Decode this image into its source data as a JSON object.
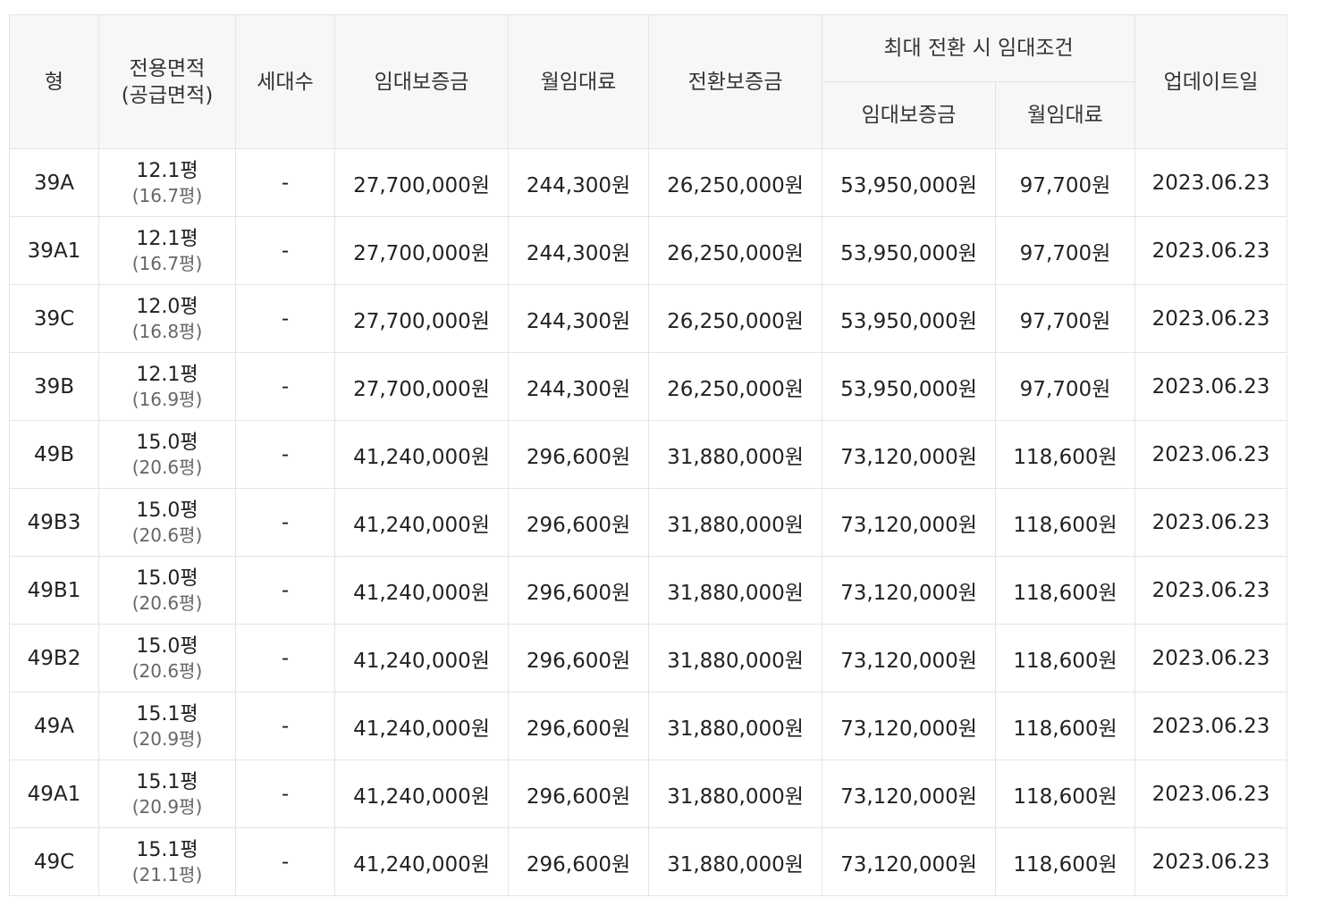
{
  "table": {
    "headers": {
      "type": "형",
      "area_line1": "전용면적",
      "area_line2": "(공급면적)",
      "households": "세대수",
      "deposit": "임대보증금",
      "monthly_rent": "월임대료",
      "conversion_deposit": "전환보증금",
      "max_conversion_group": "최대 전환 시 임대조건",
      "max_deposit": "임대보증금",
      "max_monthly_rent": "월임대료",
      "updated": "업데이트일"
    },
    "rows": [
      {
        "type": "39A",
        "area": "12.1평",
        "supply_area": "(16.7평)",
        "households": "-",
        "deposit": "27,700,000원",
        "monthly_rent": "244,300원",
        "conversion_deposit": "26,250,000원",
        "max_deposit": "53,950,000원",
        "max_monthly_rent": "97,700원",
        "updated": "2023.06.23"
      },
      {
        "type": "39A1",
        "area": "12.1평",
        "supply_area": "(16.7평)",
        "households": "-",
        "deposit": "27,700,000원",
        "monthly_rent": "244,300원",
        "conversion_deposit": "26,250,000원",
        "max_deposit": "53,950,000원",
        "max_monthly_rent": "97,700원",
        "updated": "2023.06.23"
      },
      {
        "type": "39C",
        "area": "12.0평",
        "supply_area": "(16.8평)",
        "households": "-",
        "deposit": "27,700,000원",
        "monthly_rent": "244,300원",
        "conversion_deposit": "26,250,000원",
        "max_deposit": "53,950,000원",
        "max_monthly_rent": "97,700원",
        "updated": "2023.06.23"
      },
      {
        "type": "39B",
        "area": "12.1평",
        "supply_area": "(16.9평)",
        "households": "-",
        "deposit": "27,700,000원",
        "monthly_rent": "244,300원",
        "conversion_deposit": "26,250,000원",
        "max_deposit": "53,950,000원",
        "max_monthly_rent": "97,700원",
        "updated": "2023.06.23"
      },
      {
        "type": "49B",
        "area": "15.0평",
        "supply_area": "(20.6평)",
        "households": "-",
        "deposit": "41,240,000원",
        "monthly_rent": "296,600원",
        "conversion_deposit": "31,880,000원",
        "max_deposit": "73,120,000원",
        "max_monthly_rent": "118,600원",
        "updated": "2023.06.23"
      },
      {
        "type": "49B3",
        "area": "15.0평",
        "supply_area": "(20.6평)",
        "households": "-",
        "deposit": "41,240,000원",
        "monthly_rent": "296,600원",
        "conversion_deposit": "31,880,000원",
        "max_deposit": "73,120,000원",
        "max_monthly_rent": "118,600원",
        "updated": "2023.06.23"
      },
      {
        "type": "49B1",
        "area": "15.0평",
        "supply_area": "(20.6평)",
        "households": "-",
        "deposit": "41,240,000원",
        "monthly_rent": "296,600원",
        "conversion_deposit": "31,880,000원",
        "max_deposit": "73,120,000원",
        "max_monthly_rent": "118,600원",
        "updated": "2023.06.23"
      },
      {
        "type": "49B2",
        "area": "15.0평",
        "supply_area": "(20.6평)",
        "households": "-",
        "deposit": "41,240,000원",
        "monthly_rent": "296,600원",
        "conversion_deposit": "31,880,000원",
        "max_deposit": "73,120,000원",
        "max_monthly_rent": "118,600원",
        "updated": "2023.06.23"
      },
      {
        "type": "49A",
        "area": "15.1평",
        "supply_area": "(20.9평)",
        "households": "-",
        "deposit": "41,240,000원",
        "monthly_rent": "296,600원",
        "conversion_deposit": "31,880,000원",
        "max_deposit": "73,120,000원",
        "max_monthly_rent": "118,600원",
        "updated": "2023.06.23"
      },
      {
        "type": "49A1",
        "area": "15.1평",
        "supply_area": "(20.9평)",
        "households": "-",
        "deposit": "41,240,000원",
        "monthly_rent": "296,600원",
        "conversion_deposit": "31,880,000원",
        "max_deposit": "73,120,000원",
        "max_monthly_rent": "118,600원",
        "updated": "2023.06.23"
      },
      {
        "type": "49C",
        "area": "15.1평",
        "supply_area": "(21.1평)",
        "households": "-",
        "deposit": "41,240,000원",
        "monthly_rent": "296,600원",
        "conversion_deposit": "31,880,000원",
        "max_deposit": "73,120,000원",
        "max_monthly_rent": "118,600원",
        "updated": "2023.06.23"
      }
    ]
  }
}
